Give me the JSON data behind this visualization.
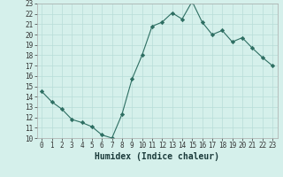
{
  "x": [
    0,
    1,
    2,
    3,
    4,
    5,
    6,
    7,
    8,
    9,
    10,
    11,
    12,
    13,
    14,
    15,
    16,
    17,
    18,
    19,
    20,
    21,
    22,
    23
  ],
  "y": [
    14.5,
    13.5,
    12.8,
    11.8,
    11.5,
    11.1,
    10.3,
    10.0,
    12.3,
    15.7,
    18.0,
    20.8,
    21.2,
    22.1,
    21.5,
    23.2,
    21.2,
    20.0,
    20.4,
    19.3,
    19.7,
    18.7,
    17.8,
    17.0
  ],
  "line_color": "#2d6e62",
  "marker": "D",
  "marker_size": 2.2,
  "bg_color": "#d5f0eb",
  "grid_color": "#b8ddd8",
  "xlabel": "Humidex (Indice chaleur)",
  "ylim": [
    10,
    23
  ],
  "xlim": [
    -0.5,
    23.5
  ],
  "yticks": [
    10,
    11,
    12,
    13,
    14,
    15,
    16,
    17,
    18,
    19,
    20,
    21,
    22,
    23
  ],
  "xticks": [
    0,
    1,
    2,
    3,
    4,
    5,
    6,
    7,
    8,
    9,
    10,
    11,
    12,
    13,
    14,
    15,
    16,
    17,
    18,
    19,
    20,
    21,
    22,
    23
  ],
  "tick_fontsize": 5.5,
  "label_fontsize": 7.0
}
